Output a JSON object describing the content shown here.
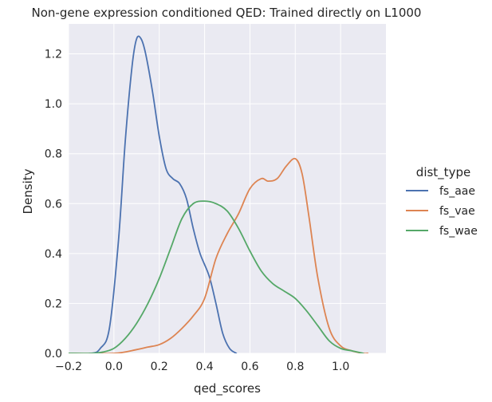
{
  "chart_data": {
    "type": "line",
    "title": "Non-gene expression conditioned  QED: Trained directly on L1000",
    "xlabel": "qed_scores",
    "ylabel": "Density",
    "xlim": [
      -0.2,
      1.2
    ],
    "ylim": [
      0.0,
      1.32
    ],
    "xticks": [
      "−0.2",
      "0.0",
      "0.2",
      "0.4",
      "0.6",
      "0.8",
      "1.0"
    ],
    "xtick_values": [
      -0.2,
      0.0,
      0.2,
      0.4,
      0.6,
      0.8,
      1.0
    ],
    "yticks": [
      "0.0",
      "0.2",
      "0.4",
      "0.6",
      "0.8",
      "1.0",
      "1.2"
    ],
    "ytick_values": [
      0.0,
      0.2,
      0.4,
      0.6,
      0.8,
      1.0,
      1.2
    ],
    "background": "#eaeaf2",
    "legend": {
      "title": "dist_type",
      "placement": "right"
    },
    "series": [
      {
        "name": "fs_aae",
        "color": "#4c72b0",
        "x": [
          -0.2,
          -0.1,
          -0.06,
          -0.02,
          0.02,
          0.05,
          0.08,
          0.1,
          0.12,
          0.14,
          0.17,
          0.2,
          0.23,
          0.26,
          0.29,
          0.32,
          0.35,
          0.38,
          0.42,
          0.45,
          0.48,
          0.51,
          0.54
        ],
        "values": [
          0.0,
          0.0,
          0.02,
          0.1,
          0.45,
          0.85,
          1.15,
          1.26,
          1.26,
          1.2,
          1.05,
          0.87,
          0.74,
          0.7,
          0.68,
          0.62,
          0.5,
          0.4,
          0.31,
          0.2,
          0.08,
          0.02,
          0.0
        ]
      },
      {
        "name": "fs_vae",
        "color": "#dd8452",
        "x": [
          -0.2,
          0.0,
          0.1,
          0.15,
          0.2,
          0.25,
          0.3,
          0.35,
          0.4,
          0.45,
          0.5,
          0.55,
          0.6,
          0.65,
          0.68,
          0.72,
          0.76,
          0.8,
          0.83,
          0.86,
          0.9,
          0.95,
          1.0,
          1.05,
          1.1,
          1.12
        ],
        "values": [
          0.0,
          0.0,
          0.015,
          0.025,
          0.035,
          0.06,
          0.1,
          0.15,
          0.22,
          0.38,
          0.48,
          0.56,
          0.66,
          0.7,
          0.69,
          0.7,
          0.75,
          0.78,
          0.72,
          0.55,
          0.3,
          0.1,
          0.03,
          0.01,
          0.0,
          0.0
        ]
      },
      {
        "name": "fs_wae",
        "color": "#55a868",
        "x": [
          -0.2,
          -0.1,
          -0.05,
          0.0,
          0.05,
          0.1,
          0.15,
          0.2,
          0.25,
          0.3,
          0.35,
          0.4,
          0.45,
          0.5,
          0.55,
          0.6,
          0.65,
          0.7,
          0.75,
          0.8,
          0.85,
          0.9,
          0.95,
          1.0,
          1.05,
          1.1
        ],
        "values": [
          0.0,
          0.0,
          0.005,
          0.02,
          0.06,
          0.12,
          0.2,
          0.3,
          0.42,
          0.54,
          0.6,
          0.61,
          0.6,
          0.57,
          0.5,
          0.41,
          0.33,
          0.28,
          0.25,
          0.22,
          0.17,
          0.11,
          0.05,
          0.02,
          0.01,
          0.0
        ]
      }
    ]
  }
}
